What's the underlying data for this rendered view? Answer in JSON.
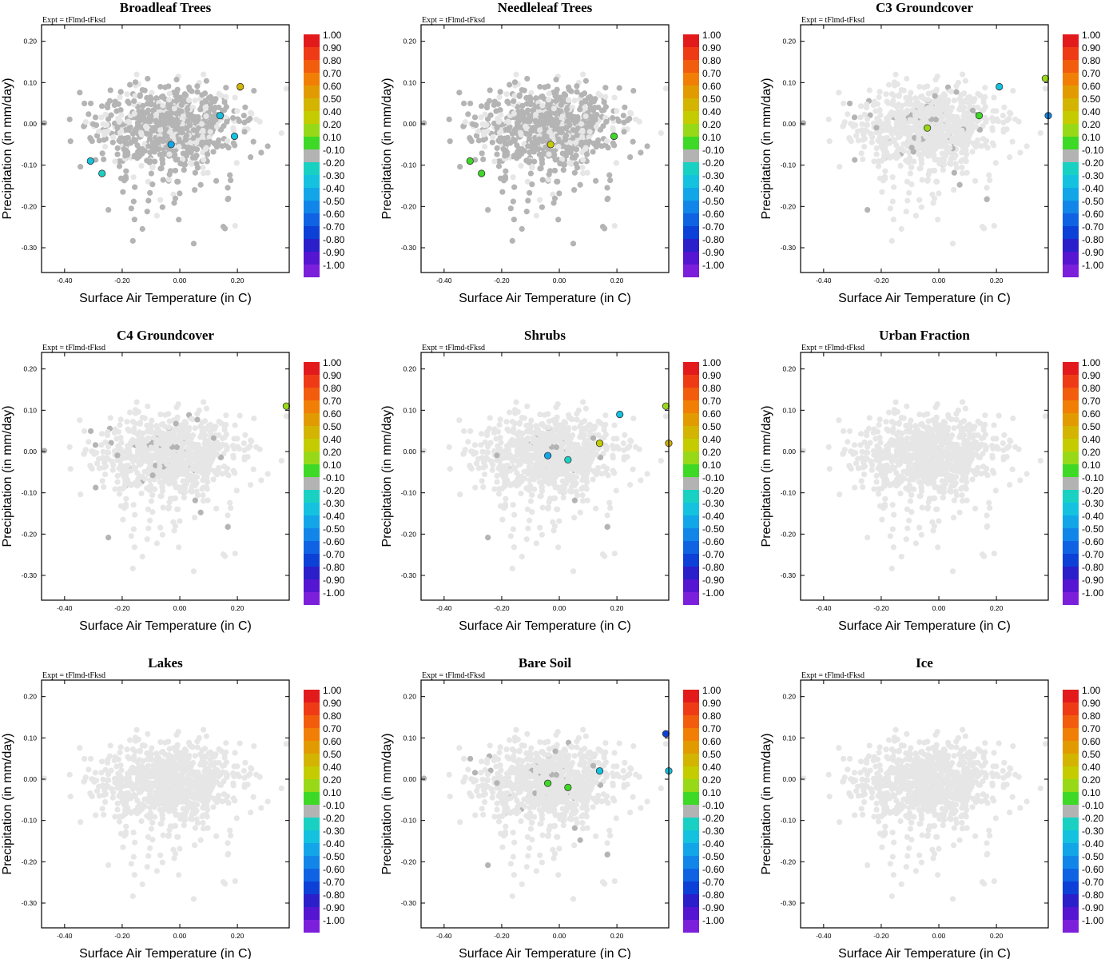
{
  "colors": {
    "background_point": "#e6e6e6",
    "neutral_point": "#b4b4b4",
    "palette": {
      "1.0": "#e31a1c",
      "0.9": "#ee3b16",
      "0.8": "#f25c0d",
      "0.7": "#f17f06",
      "0.6": "#e19b00",
      "0.5": "#d3b400",
      "0.4": "#c4cc00",
      "0.2": "#97d917",
      "0.1": "#3ed926",
      "-0.1": "#b3b3b3",
      "-0.2": "#19d1c3",
      "-0.3": "#14c2e0",
      "-0.4": "#12a6e8",
      "-0.5": "#1186e8",
      "-0.6": "#0f63e3",
      "-0.7": "#0d40d6",
      "-0.8": "#2a1fc9",
      "-0.9": "#5515d1",
      "-1.0": "#7c1fdb"
    }
  },
  "chart_data": [
    {
      "type": "scatter",
      "title": "Broadleaf Trees",
      "annotation": "Expt = tFlmd-tFksd",
      "xlabel": "Surface Air Temperature (in C)",
      "ylabel": "Precipitation (in mm/day)",
      "xlim": [
        -0.48,
        0.38
      ],
      "ylim": [
        -0.36,
        0.24
      ],
      "xticks": [
        "-0.40",
        "-0.20",
        "0.00",
        "0.20"
      ],
      "yticks": [
        "0.20",
        "0.10",
        "0.00",
        "-0.10",
        "-0.20",
        "-0.30"
      ],
      "colorbar_labels": [
        "1.00",
        "0.90",
        "0.80",
        "0.70",
        "0.60",
        "0.50",
        "0.40",
        "0.20",
        "0.10",
        "-0.10",
        "-0.20",
        "-0.30",
        "-0.40",
        "-0.50",
        "-0.60",
        "-0.70",
        "-0.80",
        "-0.90",
        "-1.00"
      ],
      "gray_fraction": 0.72,
      "highlight_points": [
        {
          "x": 0.21,
          "y": 0.09,
          "r": 0.5
        },
        {
          "x": 0.14,
          "y": 0.02,
          "r": -0.3
        },
        {
          "x": 0.19,
          "y": -0.03,
          "r": -0.3
        },
        {
          "x": -0.03,
          "y": -0.05,
          "r": -0.4
        },
        {
          "x": -0.31,
          "y": -0.09,
          "r": -0.3
        },
        {
          "x": -0.27,
          "y": -0.12,
          "r": -0.2
        }
      ]
    },
    {
      "type": "scatter",
      "title": "Needleleaf Trees",
      "annotation": "Expt = tFlmd-tFksd",
      "xlabel": "Surface Air Temperature (in C)",
      "ylabel": "Precipitation (in mm/day)",
      "xlim": [
        -0.48,
        0.38
      ],
      "ylim": [
        -0.36,
        0.24
      ],
      "xticks": [
        "-0.40",
        "-0.20",
        "0.00",
        "0.20"
      ],
      "yticks": [
        "0.20",
        "0.10",
        "0.00",
        "-0.10",
        "-0.20",
        "-0.30"
      ],
      "colorbar_labels": [
        "1.00",
        "0.90",
        "0.80",
        "0.70",
        "0.60",
        "0.50",
        "0.40",
        "0.20",
        "0.10",
        "-0.10",
        "-0.20",
        "-0.30",
        "-0.40",
        "-0.50",
        "-0.60",
        "-0.70",
        "-0.80",
        "-0.90",
        "-1.00"
      ],
      "gray_fraction": 0.72,
      "highlight_points": [
        {
          "x": 0.19,
          "y": -0.03,
          "r": 0.1
        },
        {
          "x": -0.03,
          "y": -0.05,
          "r": 0.4
        },
        {
          "x": -0.31,
          "y": -0.09,
          "r": 0.1
        },
        {
          "x": -0.27,
          "y": -0.12,
          "r": 0.1
        }
      ]
    },
    {
      "type": "scatter",
      "title": "C3 Groundcover",
      "annotation": "Expt = tFlmd-tFksd",
      "xlabel": "Surface Air Temperature (in C)",
      "ylabel": "Precipitation (in mm/day)",
      "xlim": [
        -0.48,
        0.38
      ],
      "ylim": [
        -0.36,
        0.24
      ],
      "xticks": [
        "-0.40",
        "-0.20",
        "0.00",
        "0.20"
      ],
      "yticks": [
        "0.20",
        "0.10",
        "0.00",
        "-0.10",
        "-0.20",
        "-0.30"
      ],
      "colorbar_labels": [
        "1.00",
        "0.90",
        "0.80",
        "0.70",
        "0.60",
        "0.50",
        "0.40",
        "0.20",
        "0.10",
        "-0.10",
        "-0.20",
        "-0.30",
        "-0.40",
        "-0.50",
        "-0.60",
        "-0.70",
        "-0.80",
        "-0.90",
        "-1.00"
      ],
      "gray_fraction": 0.06,
      "highlight_points": [
        {
          "x": 0.37,
          "y": 0.11,
          "r": 0.2
        },
        {
          "x": 0.21,
          "y": 0.09,
          "r": -0.3
        },
        {
          "x": 0.38,
          "y": 0.02,
          "r": -0.5
        },
        {
          "x": 0.14,
          "y": 0.02,
          "r": 0.1
        },
        {
          "x": -0.04,
          "y": -0.01,
          "r": 0.2
        }
      ]
    },
    {
      "type": "scatter",
      "title": "C4 Groundcover",
      "annotation": "Expt = tFlmd-tFksd",
      "xlabel": "Surface Air Temperature (in C)",
      "ylabel": "Precipitation (in mm/day)",
      "xlim": [
        -0.48,
        0.38
      ],
      "ylim": [
        -0.36,
        0.24
      ],
      "xticks": [
        "-0.40",
        "-0.20",
        "0.00",
        "0.20"
      ],
      "yticks": [
        "0.20",
        "0.10",
        "0.00",
        "-0.10",
        "-0.20",
        "-0.30"
      ],
      "colorbar_labels": [
        "1.00",
        "0.90",
        "0.80",
        "0.70",
        "0.60",
        "0.50",
        "0.40",
        "0.20",
        "0.10",
        "-0.10",
        "-0.20",
        "-0.30",
        "-0.40",
        "-0.50",
        "-0.60",
        "-0.70",
        "-0.80",
        "-0.90",
        "-1.00"
      ],
      "gray_fraction": 0.045,
      "highlight_points": [
        {
          "x": 0.37,
          "y": 0.11,
          "r": 0.2
        }
      ]
    },
    {
      "type": "scatter",
      "title": "Shrubs",
      "annotation": "Expt = tFlmd-tFksd",
      "xlabel": "Surface Air Temperature (in C)",
      "ylabel": "Precipitation (in mm/day)",
      "xlim": [
        -0.48,
        0.38
      ],
      "ylim": [
        -0.36,
        0.24
      ],
      "xticks": [
        "-0.40",
        "-0.20",
        "0.00",
        "0.20"
      ],
      "yticks": [
        "0.20",
        "0.10",
        "0.00",
        "-0.10",
        "-0.20",
        "-0.30"
      ],
      "colorbar_labels": [
        "1.00",
        "0.90",
        "0.80",
        "0.70",
        "0.60",
        "0.50",
        "0.40",
        "0.20",
        "0.10",
        "-0.10",
        "-0.20",
        "-0.30",
        "-0.40",
        "-0.50",
        "-0.60",
        "-0.70",
        "-0.80",
        "-0.90",
        "-1.00"
      ],
      "gray_fraction": 0.02,
      "highlight_points": [
        {
          "x": 0.37,
          "y": 0.11,
          "r": 0.2
        },
        {
          "x": 0.21,
          "y": 0.09,
          "r": -0.3
        },
        {
          "x": 0.14,
          "y": 0.02,
          "r": 0.4
        },
        {
          "x": 0.38,
          "y": 0.02,
          "r": 0.5
        },
        {
          "x": -0.04,
          "y": -0.01,
          "r": -0.4
        },
        {
          "x": 0.03,
          "y": -0.02,
          "r": -0.2
        }
      ]
    },
    {
      "type": "scatter",
      "title": "Urban Fraction",
      "annotation": "Expt = tFlmd-tFksd",
      "xlabel": "Surface Air Temperature (in C)",
      "ylabel": "Precipitation (in mm/day)",
      "xlim": [
        -0.48,
        0.38
      ],
      "ylim": [
        -0.36,
        0.24
      ],
      "xticks": [
        "-0.40",
        "-0.20",
        "0.00",
        "0.20"
      ],
      "yticks": [
        "0.20",
        "0.10",
        "0.00",
        "-0.10",
        "-0.20",
        "-0.30"
      ],
      "colorbar_labels": [
        "1.00",
        "0.90",
        "0.80",
        "0.70",
        "0.60",
        "0.50",
        "0.40",
        "0.20",
        "0.10",
        "-0.10",
        "-0.20",
        "-0.30",
        "-0.40",
        "-0.50",
        "-0.60",
        "-0.70",
        "-0.80",
        "-0.90",
        "-1.00"
      ],
      "gray_fraction": 0.0,
      "highlight_points": []
    },
    {
      "type": "scatter",
      "title": "Lakes",
      "annotation": "Expt = tFlmd-tFksd",
      "xlabel": "Surface Air Temperature (in C)",
      "ylabel": "Precipitation (in mm/day)",
      "xlim": [
        -0.48,
        0.38
      ],
      "ylim": [
        -0.36,
        0.24
      ],
      "xticks": [
        "-0.40",
        "-0.20",
        "0.00",
        "0.20"
      ],
      "yticks": [
        "0.20",
        "0.10",
        "0.00",
        "-0.10",
        "-0.20",
        "-0.30"
      ],
      "colorbar_labels": [
        "1.00",
        "0.90",
        "0.80",
        "0.70",
        "0.60",
        "0.50",
        "0.40",
        "0.20",
        "0.10",
        "-0.10",
        "-0.20",
        "-0.30",
        "-0.40",
        "-0.50",
        "-0.60",
        "-0.70",
        "-0.80",
        "-0.90",
        "-1.00"
      ],
      "gray_fraction": 0.0,
      "highlight_points": []
    },
    {
      "type": "scatter",
      "title": "Bare Soil",
      "annotation": "Expt = tFlmd-tFksd",
      "xlabel": "Surface Air Temperature (in C)",
      "ylabel": "Precipitation (in mm/day)",
      "xlim": [
        -0.48,
        0.38
      ],
      "ylim": [
        -0.36,
        0.24
      ],
      "xticks": [
        "-0.40",
        "-0.20",
        "0.00",
        "0.20"
      ],
      "yticks": [
        "0.20",
        "0.10",
        "0.00",
        "-0.10",
        "-0.20",
        "-0.30"
      ],
      "colorbar_labels": [
        "1.00",
        "0.90",
        "0.80",
        "0.70",
        "0.60",
        "0.50",
        "0.40",
        "0.20",
        "0.10",
        "-0.10",
        "-0.20",
        "-0.30",
        "-0.40",
        "-0.50",
        "-0.60",
        "-0.70",
        "-0.80",
        "-0.90",
        "-1.00"
      ],
      "gray_fraction": 0.035,
      "highlight_points": [
        {
          "x": 0.37,
          "y": 0.11,
          "r": -0.7
        },
        {
          "x": 0.14,
          "y": 0.02,
          "r": -0.3
        },
        {
          "x": 0.38,
          "y": 0.02,
          "r": -0.3
        },
        {
          "x": -0.04,
          "y": -0.01,
          "r": 0.1
        },
        {
          "x": 0.03,
          "y": -0.02,
          "r": 0.1
        }
      ]
    },
    {
      "type": "scatter",
      "title": "Ice",
      "annotation": "Expt = tFlmd-tFksd",
      "xlabel": "Surface Air Temperature (in C)",
      "ylabel": "Precipitation (in mm/day)",
      "xlim": [
        -0.48,
        0.38
      ],
      "ylim": [
        -0.36,
        0.24
      ],
      "xticks": [
        "-0.40",
        "-0.20",
        "0.00",
        "0.20"
      ],
      "yticks": [
        "0.20",
        "0.10",
        "0.00",
        "-0.10",
        "-0.20",
        "-0.30"
      ],
      "colorbar_labels": [
        "1.00",
        "0.90",
        "0.80",
        "0.70",
        "0.60",
        "0.50",
        "0.40",
        "0.20",
        "0.10",
        "-0.10",
        "-0.20",
        "-0.30",
        "-0.40",
        "-0.50",
        "-0.60",
        "-0.70",
        "-0.80",
        "-0.90",
        "-1.00"
      ],
      "gray_fraction": 0.0,
      "highlight_points": []
    }
  ]
}
